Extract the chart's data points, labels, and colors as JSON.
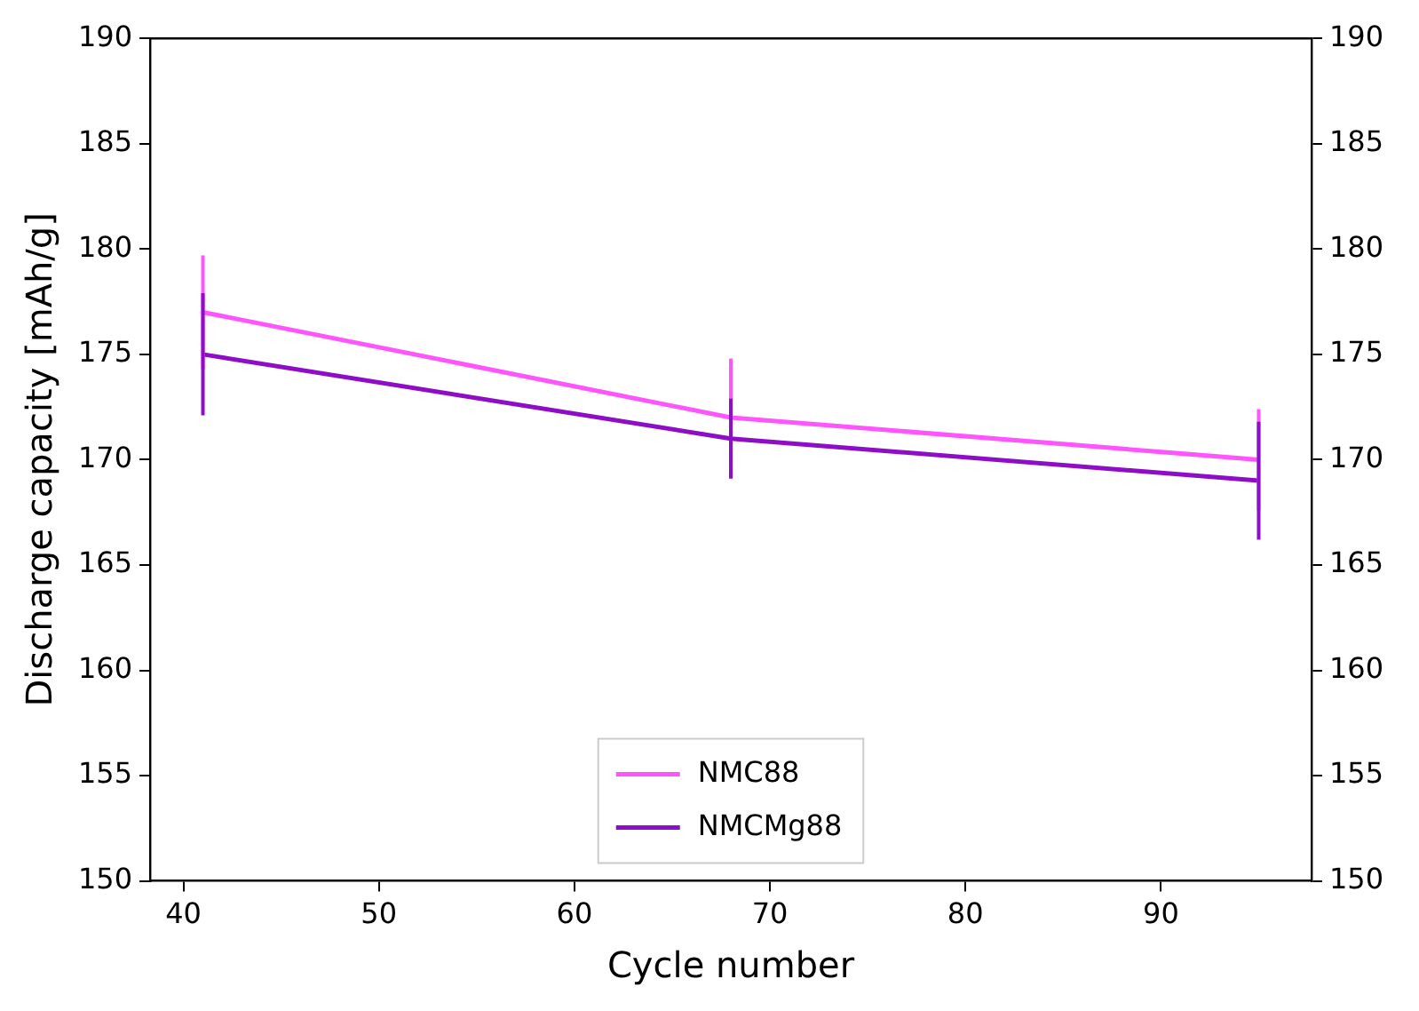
{
  "chart_data": {
    "type": "line",
    "xlabel": "Cycle number",
    "ylabel": "Discharge capacity [mAh/g]",
    "x": [
      41,
      68,
      95
    ],
    "series": [
      {
        "name": "NMC88",
        "color": "#ff55ff",
        "values": [
          177,
          172,
          170
        ],
        "errors": [
          2.7,
          2.8,
          2.4
        ]
      },
      {
        "name": "NMCMg88",
        "color": "#8e0ec8",
        "values": [
          175,
          171,
          169
        ],
        "errors": [
          2.9,
          1.9,
          2.8
        ]
      }
    ],
    "xlim": [
      38.3,
      97.7
    ],
    "xticks": [
      40,
      50,
      60,
      70,
      80,
      90
    ],
    "ylim": [
      150,
      190
    ],
    "yticks": [
      150,
      155,
      160,
      165,
      170,
      175,
      180,
      185,
      190
    ],
    "y2lim": [
      150,
      190
    ],
    "y2ticks": [
      150,
      155,
      160,
      165,
      170,
      175,
      180,
      185,
      190
    ],
    "legend": "bottom",
    "grid": false,
    "marker": "none",
    "line_style": "solid"
  }
}
